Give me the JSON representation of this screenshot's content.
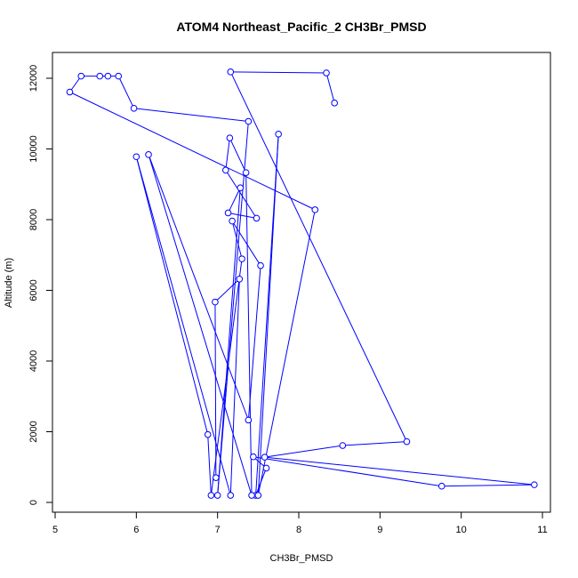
{
  "chart_data": {
    "type": "line",
    "title": "ATOM4 Northeast_Pacific_2 CH3Br_PMSD",
    "xlabel": "CH3Br_PMSD",
    "ylabel": "Altitude (m)",
    "xlim": [
      5,
      11
    ],
    "ylim": [
      0,
      12000
    ],
    "x_ticks": [
      "5",
      "6",
      "7",
      "8",
      "9",
      "10",
      "11"
    ],
    "y_ticks": [
      "0",
      "2000",
      "4000",
      "6000",
      "8000",
      "10000",
      "12000"
    ],
    "x_tick_values": [
      5,
      6,
      7,
      8,
      9,
      10,
      11
    ],
    "y_tick_values": [
      0,
      2000,
      4000,
      6000,
      8000,
      10000,
      12000
    ],
    "grid": false,
    "series_color": "#0000ff",
    "marker": "open-circle",
    "series": [
      {
        "points": [
          [
            8.44,
            11300
          ],
          [
            8.34,
            12150
          ],
          [
            7.16,
            12180
          ],
          [
            9.33,
            1720
          ],
          [
            8.54,
            1610
          ],
          [
            7.58,
            1280
          ],
          [
            10.9,
            500
          ],
          [
            9.76,
            460
          ],
          [
            7.44,
            1290
          ],
          [
            7.6,
            970
          ],
          [
            7.47,
            200
          ],
          [
            7.75,
            10420
          ],
          [
            7.5,
            200
          ],
          [
            8.2,
            8280
          ],
          [
            5.18,
            11610
          ],
          [
            5.32,
            12060
          ],
          [
            5.55,
            12060
          ],
          [
            5.65,
            12060
          ],
          [
            5.78,
            12060
          ],
          [
            5.97,
            11150
          ],
          [
            7.38,
            10780
          ],
          [
            7.0,
            200
          ],
          [
            7.28,
            8900
          ],
          [
            7.13,
            8190
          ],
          [
            7.48,
            8040
          ],
          [
            7.1,
            9400
          ],
          [
            7.15,
            10310
          ],
          [
            7.35,
            9330
          ],
          [
            7.42,
            200
          ],
          [
            6.15,
            9840
          ],
          [
            7.38,
            2330
          ],
          [
            7.53,
            6700
          ],
          [
            7.18,
            7960
          ],
          [
            7.3,
            6890
          ],
          [
            6.92,
            200
          ],
          [
            6.88,
            1920
          ],
          [
            6.0,
            9780
          ],
          [
            7.16,
            200
          ],
          [
            7.27,
            6320
          ],
          [
            6.97,
            5670
          ],
          [
            6.98,
            700
          ]
        ]
      }
    ]
  }
}
